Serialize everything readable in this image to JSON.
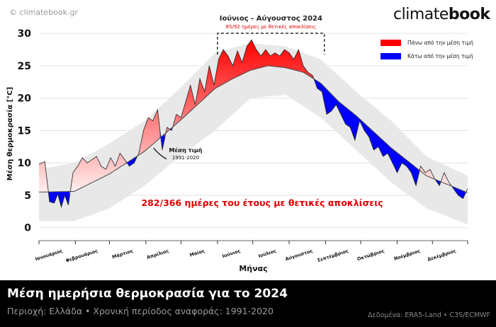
{
  "header": {
    "copyright": "© climatebook.gr",
    "brand_light": "climate",
    "brand_bold": "book"
  },
  "legend": {
    "above": {
      "label": "Πάνω από την μέση τιμή",
      "color": "#ff0000"
    },
    "below": {
      "label": "Κάτω από την μέση τιμή",
      "color": "#0000ff"
    }
  },
  "annotations": {
    "summer_title": "Ιούνιος - Αύγουστος 2024",
    "summer_sub": "85/92 ημέρες με θετικές αποκλίσεις",
    "mean_label_1": "Μέση τιμή",
    "mean_label_2": "1991-2020",
    "year_summary": "282/366 ημέρες του έτους με θετικές αποκλίσεις"
  },
  "footer": {
    "title": "Μέση ημερήσια θερμοκρασία για το 2024",
    "subtitle": "Περιοχή: Ελλάδα • Χρονική περίοδος αναφοράς: 1991-2020",
    "source": "Δεδομένα: ERA5-Land • C3S/ECMWF"
  },
  "colors": {
    "above": "#ff0000",
    "below": "#0000ff",
    "band": "#e8e8e8",
    "mean_line": "#444444",
    "summary_text": "#e00000",
    "footer_bg": "#000000"
  },
  "chart_data": {
    "type": "area",
    "xlabel": "Μήνας",
    "ylabel": "Μέση θερμοκρασία [°C]",
    "ylim": [
      -2,
      31
    ],
    "yticks": [
      0,
      5,
      10,
      15,
      20,
      25,
      30
    ],
    "xlim": [
      1,
      366
    ],
    "grid": true,
    "months": [
      "Ιανουάριος",
      "Φεβρουάριος",
      "Μάρτιος",
      "Απρίλιος",
      "Μαίος",
      "Ιούνιος",
      "Ιούλιος",
      "Αύγουστος",
      "Σεπτέμβριος",
      "Οκτώβριος",
      "Νοέμβριος",
      "Δεκέμβριος"
    ],
    "month_start_days": [
      1,
      32,
      61,
      92,
      122,
      153,
      183,
      214,
      245,
      275,
      306,
      336
    ],
    "series": [
      {
        "name": "2024",
        "x": [
          1,
          6,
          10,
          14,
          17,
          20,
          23,
          26,
          30,
          34,
          38,
          42,
          46,
          50,
          54,
          58,
          62,
          66,
          70,
          74,
          78,
          82,
          86,
          90,
          94,
          98,
          102,
          106,
          110,
          114,
          118,
          122,
          126,
          130,
          134,
          138,
          142,
          146,
          150,
          154,
          158,
          162,
          166,
          170,
          174,
          178,
          182,
          186,
          190,
          194,
          198,
          202,
          206,
          210,
          214,
          218,
          222,
          226,
          230,
          234,
          238,
          242,
          246,
          250,
          254,
          258,
          262,
          266,
          270,
          274,
          278,
          282,
          286,
          290,
          294,
          298,
          302,
          306,
          310,
          314,
          318,
          322,
          326,
          330,
          334,
          338,
          342,
          346,
          350,
          354,
          358,
          362,
          366
        ],
        "values": [
          9.8,
          10.2,
          4.0,
          3.8,
          5.2,
          3.2,
          5.0,
          3.5,
          8.5,
          9.5,
          10.8,
          10.0,
          10.5,
          11.0,
          9.5,
          9.0,
          10.8,
          9.5,
          11.5,
          10.5,
          9.5,
          10.0,
          11.5,
          15.0,
          17.0,
          16.5,
          18.2,
          12.0,
          15.5,
          15.0,
          17.5,
          17.0,
          19.5,
          22.0,
          19.0,
          23.0,
          21.0,
          25.0,
          22.0,
          26.0,
          27.5,
          26.5,
          25.0,
          27.3,
          25.5,
          28.0,
          29.0,
          27.5,
          26.5,
          27.5,
          26.5,
          27.0,
          26.5,
          27.5,
          27.0,
          26.0,
          27.5,
          25.0,
          24.0,
          23.5,
          21.5,
          21.0,
          17.5,
          18.0,
          19.0,
          17.5,
          16.0,
          15.5,
          13.5,
          16.5,
          15.0,
          14.0,
          12.0,
          12.5,
          11.0,
          11.5,
          10.0,
          8.5,
          10.0,
          9.5,
          8.5,
          6.5,
          9.5,
          8.5,
          9.0,
          7.5,
          6.5,
          8.5,
          7.0,
          6.0,
          5.0,
          4.5,
          6.0
        ]
      },
      {
        "name": "Μέση τιμή 1991-2020",
        "x": [
          1,
          31,
          61,
          91,
          121,
          151,
          166,
          181,
          196,
          211,
          226,
          241,
          256,
          271,
          301,
          331,
          366
        ],
        "values": [
          5.5,
          5.6,
          8.3,
          11.8,
          16.5,
          21.5,
          23.0,
          24.3,
          25.0,
          24.7,
          24.0,
          22.3,
          19.5,
          17.3,
          12.3,
          8.0,
          5.4
        ]
      }
    ],
    "band_lower": {
      "x": [
        1,
        31,
        61,
        91,
        121,
        151,
        181,
        211,
        241,
        271,
        301,
        331,
        366
      ],
      "values": [
        1.0,
        1.0,
        3.0,
        6.5,
        11.0,
        15.0,
        20.0,
        20.5,
        17.0,
        12.0,
        7.0,
        3.0,
        0.5
      ]
    },
    "band_upper": {
      "x": [
        1,
        31,
        61,
        91,
        121,
        151,
        181,
        211,
        241,
        271,
        301,
        331,
        366
      ],
      "values": [
        9.0,
        10.0,
        13.0,
        16.5,
        21.5,
        27.0,
        28.5,
        28.0,
        26.0,
        21.0,
        16.5,
        11.0,
        8.0
      ]
    }
  }
}
